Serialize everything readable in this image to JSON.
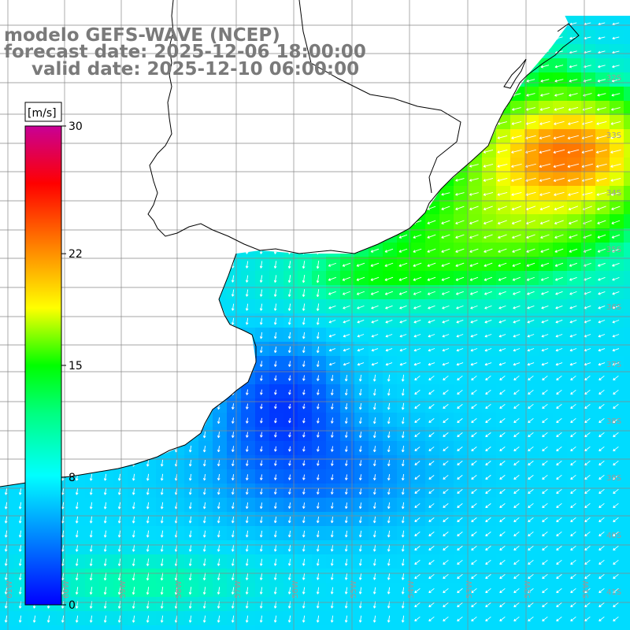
{
  "title": {
    "line1": "modelo GEFS-WAVE (NCEP)",
    "line2": "forecast date: 2025-12-06 18:00:00",
    "line3": "valid date: 2025-12-10 06:00:00"
  },
  "colorbar": {
    "unit": "[m/s]",
    "ticks": [
      "30",
      "22",
      "15",
      "8",
      "0"
    ],
    "tick_values": [
      30,
      22,
      15,
      8,
      0
    ],
    "min": 0,
    "max": 30,
    "colors": [
      "#0000ff",
      "#00c8ff",
      "#00ffff",
      "#00ff00",
      "#ffff00",
      "#ff7f00",
      "#ff0000",
      "#c80096"
    ]
  },
  "lat_labels": [
    "32S",
    "33S",
    "34S",
    "35S",
    "36S",
    "37S",
    "38S",
    "39S",
    "40S",
    "41S"
  ],
  "lon_labels": [
    "61W",
    "60W",
    "59W",
    "58W",
    "57W",
    "56W",
    "55W",
    "54W",
    "53W",
    "52W",
    "51W"
  ],
  "colors": {
    "land": "#ffffff",
    "grid": "#888888",
    "coast": "#000000",
    "title": "#7a7a7a",
    "arrows": "#ffffff"
  }
}
